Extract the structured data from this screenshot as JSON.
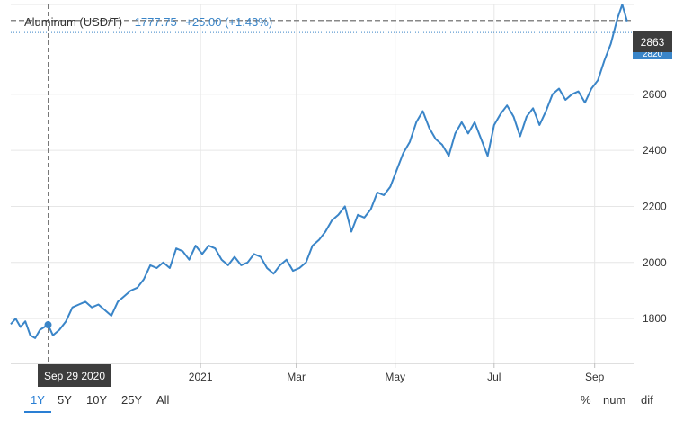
{
  "header": {
    "name": "Aluminum (USD/T)",
    "price": "1777.75",
    "change": "+25.00 (+1.43%)"
  },
  "crosshair": {
    "date_label": "Sep 29 2020",
    "value": 1777.75
  },
  "last_price": {
    "label": "2863",
    "hidden_label": "2820"
  },
  "range_buttons": [
    {
      "label": "1Y",
      "active": true
    },
    {
      "label": "5Y",
      "active": false
    },
    {
      "label": "10Y",
      "active": false
    },
    {
      "label": "25Y",
      "active": false
    },
    {
      "label": "All",
      "active": false
    }
  ],
  "mode_buttons": [
    {
      "label": "%"
    },
    {
      "label": "num"
    },
    {
      "label": "dif"
    }
  ],
  "colors": {
    "line": "#3a85c8",
    "header_value": "#3a85c8",
    "crosshair": "#777777",
    "last_price_line": "#888888",
    "last_price_badge": "#3d3d3d",
    "hidden_badge": "#3a85c8",
    "accent": "#2a7fd4"
  },
  "chart_data": {
    "type": "line",
    "title": "Aluminum (USD/T)",
    "xlabel": "",
    "ylabel": "",
    "x_tick_labels": [
      "2021",
      "Mar",
      "May",
      "Jul",
      "Sep"
    ],
    "x_ticks": [
      "2021-01-01",
      "2021-03-01",
      "2021-05-01",
      "2021-07-01",
      "2021-09-01"
    ],
    "y_ticks": [
      1800,
      2000,
      2200,
      2400,
      2600
    ],
    "ylim": [
      1640,
      2920
    ],
    "xlim": [
      "2020-09-06",
      "2021-09-25"
    ],
    "grid": true,
    "series": [
      {
        "values": [
          [
            "2020-09-06",
            1780
          ],
          [
            "2020-09-09",
            1800
          ],
          [
            "2020-09-12",
            1770
          ],
          [
            "2020-09-15",
            1790
          ],
          [
            "2020-09-18",
            1740
          ],
          [
            "2020-09-21",
            1730
          ],
          [
            "2020-09-24",
            1760
          ],
          [
            "2020-09-29",
            1778
          ],
          [
            "2020-10-02",
            1740
          ],
          [
            "2020-10-06",
            1760
          ],
          [
            "2020-10-10",
            1790
          ],
          [
            "2020-10-14",
            1840
          ],
          [
            "2020-10-18",
            1850
          ],
          [
            "2020-10-22",
            1860
          ],
          [
            "2020-10-26",
            1840
          ],
          [
            "2020-10-30",
            1850
          ],
          [
            "2020-11-03",
            1830
          ],
          [
            "2020-11-07",
            1810
          ],
          [
            "2020-11-11",
            1860
          ],
          [
            "2020-11-15",
            1880
          ],
          [
            "2020-11-19",
            1900
          ],
          [
            "2020-11-23",
            1910
          ],
          [
            "2020-11-27",
            1940
          ],
          [
            "2020-12-01",
            1990
          ],
          [
            "2020-12-05",
            1980
          ],
          [
            "2020-12-09",
            2000
          ],
          [
            "2020-12-13",
            1980
          ],
          [
            "2020-12-17",
            2050
          ],
          [
            "2020-12-21",
            2040
          ],
          [
            "2020-12-25",
            2010
          ],
          [
            "2020-12-29",
            2060
          ],
          [
            "2021-01-02",
            2030
          ],
          [
            "2021-01-06",
            2060
          ],
          [
            "2021-01-10",
            2050
          ],
          [
            "2021-01-14",
            2010
          ],
          [
            "2021-01-18",
            1990
          ],
          [
            "2021-01-22",
            2020
          ],
          [
            "2021-01-26",
            1990
          ],
          [
            "2021-01-30",
            2000
          ],
          [
            "2021-02-03",
            2030
          ],
          [
            "2021-02-07",
            2020
          ],
          [
            "2021-02-11",
            1980
          ],
          [
            "2021-02-15",
            1960
          ],
          [
            "2021-02-19",
            1990
          ],
          [
            "2021-02-23",
            2010
          ],
          [
            "2021-02-27",
            1970
          ],
          [
            "2021-03-03",
            1980
          ],
          [
            "2021-03-07",
            2000
          ],
          [
            "2021-03-11",
            2060
          ],
          [
            "2021-03-15",
            2080
          ],
          [
            "2021-03-19",
            2110
          ],
          [
            "2021-03-23",
            2150
          ],
          [
            "2021-03-27",
            2170
          ],
          [
            "2021-03-31",
            2200
          ],
          [
            "2021-04-04",
            2110
          ],
          [
            "2021-04-08",
            2170
          ],
          [
            "2021-04-12",
            2160
          ],
          [
            "2021-04-16",
            2190
          ],
          [
            "2021-04-20",
            2250
          ],
          [
            "2021-04-24",
            2240
          ],
          [
            "2021-04-28",
            2270
          ],
          [
            "2021-05-02",
            2330
          ],
          [
            "2021-05-06",
            2390
          ],
          [
            "2021-05-10",
            2430
          ],
          [
            "2021-05-14",
            2500
          ],
          [
            "2021-05-18",
            2540
          ],
          [
            "2021-05-22",
            2480
          ],
          [
            "2021-05-26",
            2440
          ],
          [
            "2021-05-30",
            2420
          ],
          [
            "2021-06-03",
            2380
          ],
          [
            "2021-06-07",
            2460
          ],
          [
            "2021-06-11",
            2500
          ],
          [
            "2021-06-15",
            2460
          ],
          [
            "2021-06-19",
            2500
          ],
          [
            "2021-06-23",
            2440
          ],
          [
            "2021-06-27",
            2380
          ],
          [
            "2021-07-01",
            2490
          ],
          [
            "2021-07-05",
            2530
          ],
          [
            "2021-07-09",
            2560
          ],
          [
            "2021-07-13",
            2520
          ],
          [
            "2021-07-17",
            2450
          ],
          [
            "2021-07-21",
            2520
          ],
          [
            "2021-07-25",
            2550
          ],
          [
            "2021-07-29",
            2490
          ],
          [
            "2021-08-02",
            2540
          ],
          [
            "2021-08-06",
            2600
          ],
          [
            "2021-08-10",
            2620
          ],
          [
            "2021-08-14",
            2580
          ],
          [
            "2021-08-18",
            2600
          ],
          [
            "2021-08-22",
            2610
          ],
          [
            "2021-08-26",
            2570
          ],
          [
            "2021-08-30",
            2620
          ],
          [
            "2021-09-03",
            2650
          ],
          [
            "2021-09-07",
            2720
          ],
          [
            "2021-09-11",
            2780
          ],
          [
            "2021-09-15",
            2870
          ],
          [
            "2021-09-18",
            2920
          ],
          [
            "2021-09-21",
            2860
          ]
        ]
      }
    ]
  }
}
